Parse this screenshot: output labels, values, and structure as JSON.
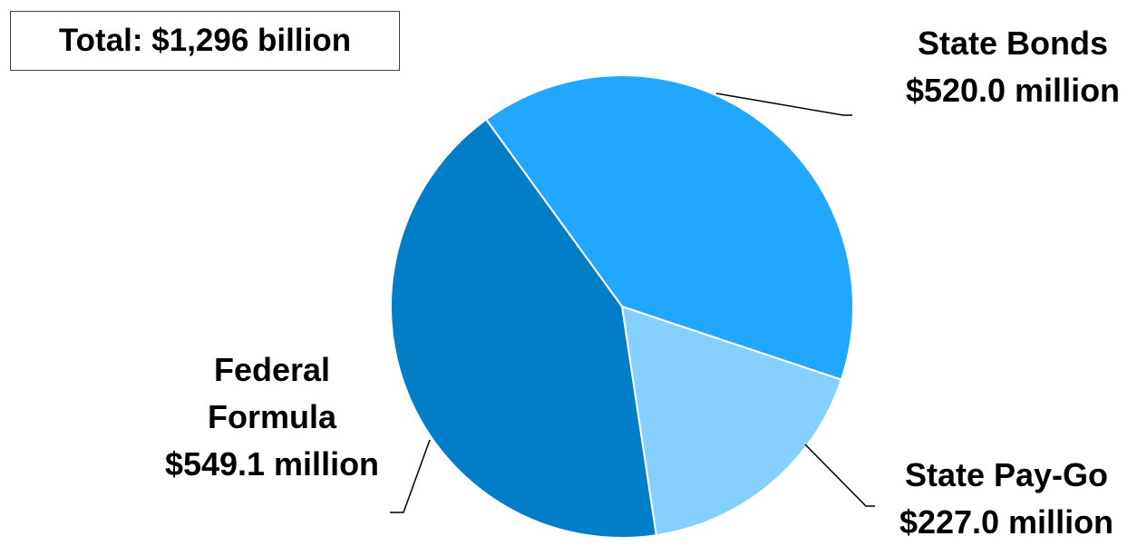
{
  "chart_data": {
    "type": "pie",
    "annotation": "Total: $1,296 billion",
    "slices": [
      {
        "name": "State Bonds",
        "label_lines": [
          "State Bonds",
          "$520.0 million"
        ],
        "value": 520.0,
        "color": "#22a7ff"
      },
      {
        "name": "State Pay-Go",
        "label_lines": [
          "State Pay-Go",
          "$227.0 million"
        ],
        "value": 227.0,
        "color": "#85d0fe"
      },
      {
        "name": "Federal Formula",
        "label_lines": [
          "Federal",
          "Formula",
          "$549.1 million"
        ],
        "value": 549.1,
        "color": "#027ec9"
      }
    ],
    "legend": "none"
  }
}
